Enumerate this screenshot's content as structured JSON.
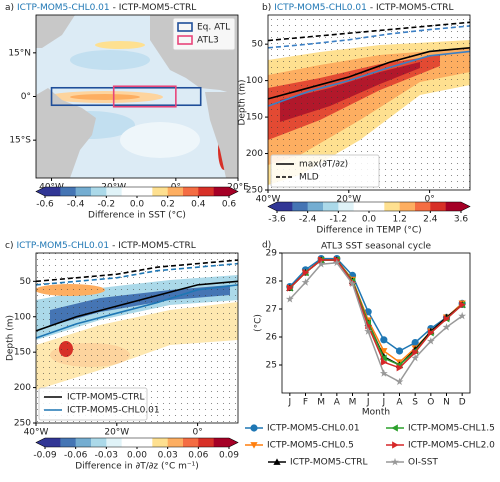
{
  "chart_data": [
    {
      "type": "map",
      "label": "a)",
      "experiment": "ICTP-MOM5-CHL0.01",
      "reference": "- ICTP-MOM5-CTRL",
      "xlim": [
        -45,
        20
      ],
      "ylim": [
        -28,
        28
      ],
      "xticks": [
        {
          "value": -40,
          "label": "40°W"
        },
        {
          "value": -20,
          "label": "20°W"
        },
        {
          "value": 0,
          "label": "0°"
        },
        {
          "value": 20,
          "label": "20°E"
        }
      ],
      "yticks": [
        {
          "value": 15,
          "label": "15°N"
        },
        {
          "value": 0,
          "label": "0°"
        },
        {
          "value": -15,
          "label": "15°S"
        }
      ],
      "regions": [
        {
          "name": "Eq. ATL",
          "color": "#1f4e99",
          "lon": [
            -40,
            8
          ],
          "lat": [
            -3,
            3
          ]
        },
        {
          "name": "ATL3",
          "color": "#e8457a",
          "lon": [
            -20,
            0
          ],
          "lat": [
            -3,
            3
          ]
        }
      ],
      "legend_loc": "upper right",
      "colorbar": {
        "label": "Difference in SST (°C)",
        "lim": [
          -0.6,
          0.6
        ],
        "ticks": [
          -0.6,
          -0.4,
          -0.2,
          {
            "value": 0,
            "label": "0.0"
          },
          0.2,
          0.4,
          0.6
        ],
        "colors": [
          "#313695",
          "#4575b4",
          "#74add1",
          "#abd9e9",
          "#e0f3f8",
          "#ffffff",
          "#ffffff",
          "#fee090",
          "#fdae61",
          "#f46d43",
          "#d73027",
          "#a50026"
        ]
      }
    },
    {
      "type": "section",
      "label": "b)",
      "experiment": "ICTP-MOM5-CHL0.01",
      "reference": "- ICTP-MOM5-CTRL",
      "ylabel": "Depth (m)",
      "xlim": [
        -40,
        10
      ],
      "ylim": [
        250,
        10
      ],
      "xticks": [
        {
          "value": -40,
          "label": "40°W"
        },
        {
          "value": -20,
          "label": "20°W"
        },
        {
          "value": 0,
          "label": "0°"
        }
      ],
      "yticks": [
        50,
        100,
        150,
        200,
        250
      ],
      "x": [
        -40,
        -30,
        -20,
        -10,
        0,
        10
      ],
      "series": [
        {
          "color": "#000000",
          "dashed": false,
          "values": [
            125,
            110,
            95,
            75,
            60,
            55
          ]
        },
        {
          "color": "#3b7fc4",
          "dashed": false,
          "values": [
            135,
            115,
            100,
            82,
            66,
            60
          ]
        },
        {
          "color": "#000000",
          "dashed": true,
          "values": [
            45,
            40,
            35,
            30,
            25,
            20
          ]
        },
        {
          "color": "#3b7fc4",
          "dashed": true,
          "values": [
            55,
            50,
            44,
            36,
            30,
            25
          ]
        }
      ],
      "legend": [
        {
          "label": "max(∂T/∂z)",
          "dashed": false
        },
        {
          "label": "MLD",
          "dashed": true
        }
      ],
      "legend_loc": "lower left",
      "colorbar": {
        "label": "Difference in TEMP (°C)",
        "lim": [
          -3.6,
          3.6
        ],
        "ticks": [
          -3.6,
          -2.4,
          -1.2,
          {
            "value": 0,
            "label": "0.0"
          },
          1.2,
          2.4,
          3.6
        ],
        "colors": [
          "#313695",
          "#4575b4",
          "#74add1",
          "#abd9e9",
          "#e0f3f8",
          "#ffffff",
          "#ffffff",
          "#fee090",
          "#fdae61",
          "#f46d43",
          "#d73027",
          "#a50026"
        ]
      }
    },
    {
      "type": "section",
      "label": "c)",
      "experiment": "ICTP-MOM5-CHL0.01",
      "reference": "- ICTP-MOM5-CTRL",
      "ylabel": "Depth (m)",
      "xlim": [
        -40,
        10
      ],
      "ylim": [
        250,
        10
      ],
      "xticks": [
        {
          "value": -40,
          "label": "40°W"
        },
        {
          "value": -20,
          "label": "20°W"
        },
        {
          "value": 0,
          "label": "0°"
        }
      ],
      "yticks": [
        50,
        100,
        150,
        200,
        250
      ],
      "x": [
        -40,
        -30,
        -20,
        -10,
        0,
        10
      ],
      "series": [
        {
          "color": "#000000",
          "dashed": false,
          "values": [
            120,
            100,
            85,
            70,
            55,
            50
          ]
        },
        {
          "color": "#1f77b4",
          "dashed": false,
          "values": [
            130,
            110,
            95,
            80,
            62,
            55
          ]
        },
        {
          "color": "#000000",
          "dashed": true,
          "values": [
            50,
            45,
            40,
            30,
            25,
            20
          ]
        },
        {
          "color": "#1f77b4",
          "dashed": true,
          "values": [
            55,
            50,
            45,
            35,
            30,
            25
          ]
        }
      ],
      "legend": [
        {
          "label": "ICTP-MOM5-CTRL",
          "color": "#000000"
        },
        {
          "label": "ICTP-MOM5-CHL0.01",
          "color": "#1f77b4"
        }
      ],
      "legend_loc": "lower left",
      "colorbar": {
        "label": "Difference in ∂T/∂z (°C m⁻¹)",
        "lim": [
          -0.09,
          0.09
        ],
        "ticks": [
          -0.09,
          -0.06,
          -0.03,
          {
            "value": 0,
            "label": "0.00"
          },
          0.03,
          0.06,
          0.09
        ],
        "colors": [
          "#313695",
          "#4575b4",
          "#74add1",
          "#abd9e9",
          "#e0f3f8",
          "#ffffff",
          "#ffffff",
          "#fee090",
          "#fdae61",
          "#f46d43",
          "#d73027",
          "#a50026"
        ]
      }
    },
    {
      "type": "line",
      "label": "d)",
      "title": "ATL3 SST seasonal cycle",
      "xlabel": "Month",
      "ylabel": "(°C)",
      "categories": [
        "J",
        "F",
        "M",
        "A",
        "M",
        "J",
        "J",
        "A",
        "S",
        "O",
        "N",
        "D"
      ],
      "ylim": [
        24,
        29
      ],
      "yticks": [
        25,
        26,
        27,
        28,
        29
      ],
      "series": [
        {
          "name": "ICTP-MOM5-CHL0.01",
          "color": "#1f77b4",
          "marker": "circle",
          "values": [
            27.8,
            28.4,
            28.8,
            28.8,
            28.2,
            26.9,
            25.9,
            25.5,
            25.8,
            26.3,
            26.7,
            27.2
          ]
        },
        {
          "name": "ICTP-MOM5-CHL0.5",
          "color": "#ff7f0e",
          "marker": "triangle-down",
          "values": [
            27.75,
            28.3,
            28.75,
            28.75,
            28.05,
            26.6,
            25.5,
            25.1,
            25.6,
            26.2,
            26.7,
            27.2
          ]
        },
        {
          "name": "ICTP-MOM5-CTRL",
          "color": "#000000",
          "marker": "triangle-up",
          "values": [
            27.75,
            28.3,
            28.75,
            28.75,
            28.0,
            26.5,
            25.3,
            25.0,
            25.55,
            26.2,
            26.7,
            27.15
          ]
        },
        {
          "name": "ICTP-MOM5-CHL1.5",
          "color": "#2ca02c",
          "marker": "triangle-left",
          "values": [
            27.75,
            28.3,
            28.75,
            28.75,
            28.0,
            26.5,
            25.25,
            25.0,
            25.5,
            26.15,
            26.65,
            27.15
          ]
        },
        {
          "name": "ICTP-MOM5-CHL2.0",
          "color": "#d62728",
          "marker": "triangle-right",
          "values": [
            27.75,
            28.3,
            28.75,
            28.75,
            27.95,
            26.4,
            25.1,
            24.9,
            25.45,
            26.15,
            26.65,
            27.15
          ]
        },
        {
          "name": "OI-SST",
          "color": "#999999",
          "marker": "star",
          "values": [
            27.35,
            27.95,
            28.6,
            28.65,
            27.9,
            26.2,
            24.7,
            24.4,
            25.25,
            25.85,
            26.35,
            26.75
          ]
        }
      ]
    }
  ]
}
